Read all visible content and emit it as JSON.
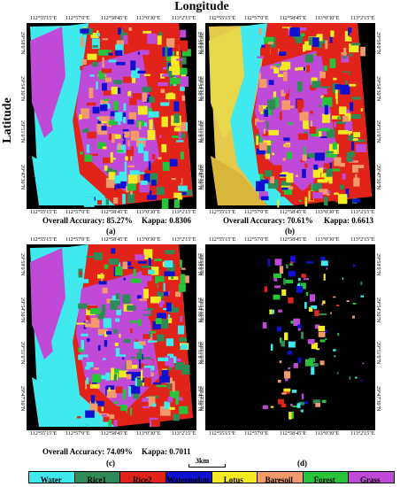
{
  "axis_titles": {
    "x": "Longitude",
    "y": "Latitude"
  },
  "lon_ticks": [
    "112°55'15\"E",
    "112°57'0\"E",
    "112°58'45\"E",
    "113°0'30\"E",
    "113°2'15\"E"
  ],
  "lat_ticks": [
    "29°58'0\"N",
    "29°54'30\"N",
    "29°51'0\"N",
    "29°47'30\"N"
  ],
  "panels": [
    {
      "id": "a",
      "label": "(a)",
      "accuracy": "Overall Accuracy: 85.27%",
      "kappa": "Kappa: 0.8306",
      "theme": "cyan"
    },
    {
      "id": "b",
      "label": "(b)",
      "accuracy": "Overall Accuracy: 70.61%",
      "kappa": "Kappa: 0.6613",
      "theme": "yellow"
    },
    {
      "id": "c",
      "label": "(c)",
      "accuracy": "Overall Accuracy: 74.09%",
      "kappa": "Kappa: 0.7011",
      "theme": "cyan"
    },
    {
      "id": "d",
      "label": "(d)",
      "accuracy": "",
      "kappa": "",
      "theme": "black"
    }
  ],
  "scale": {
    "text": "3km"
  },
  "legend": [
    {
      "name": "Water",
      "color": "#3fe9ee"
    },
    {
      "name": "Rice1",
      "color": "#2e8b57"
    },
    {
      "name": "Rice2",
      "color": "#e2231a"
    },
    {
      "name": "Watermelon",
      "color": "#1010d0"
    },
    {
      "name": "Lotus",
      "color": "#f4ea24"
    },
    {
      "name": "Baresoil",
      "color": "#f29a6b"
    },
    {
      "name": "Forest",
      "color": "#27c43a"
    },
    {
      "name": "Grass",
      "color": "#c04ad8"
    }
  ]
}
